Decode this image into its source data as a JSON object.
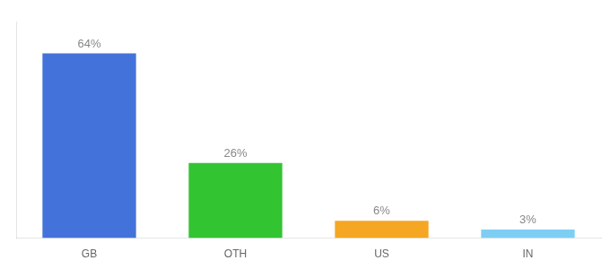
{
  "chart_data": {
    "type": "bar",
    "categories": [
      "GB",
      "OTH",
      "US",
      "IN"
    ],
    "values": [
      64,
      26,
      6,
      3
    ],
    "value_labels": [
      "64%",
      "26%",
      "6%",
      "3%"
    ],
    "colors": [
      "#4472db",
      "#33c432",
      "#f5a623",
      "#7ecef4"
    ],
    "ylim": [
      0,
      75
    ],
    "grid": false,
    "data_labels": true,
    "tick_labels": "x"
  }
}
